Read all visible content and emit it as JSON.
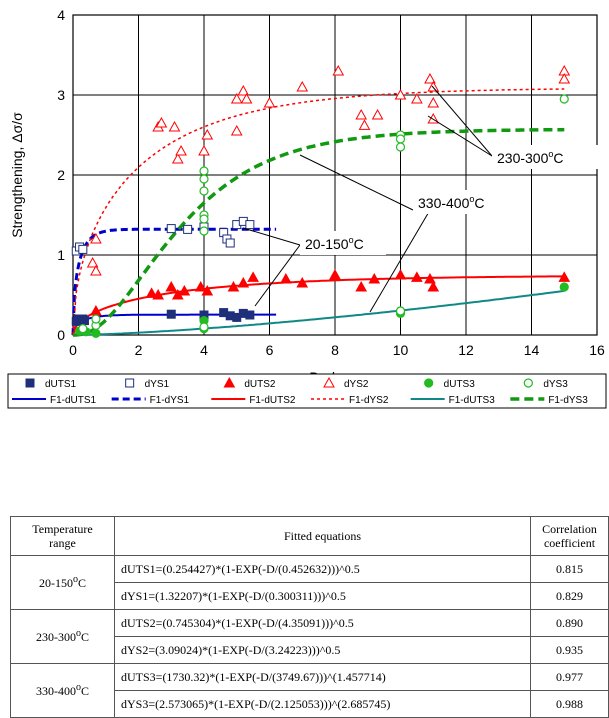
{
  "chart_data": {
    "type": "scatter",
    "xlabel": "D, dpa",
    "ylabel": "Strengthening,  Δσ/σ",
    "xlim": [
      0,
      16
    ],
    "ylim": [
      0,
      4
    ],
    "xticks": [
      "0",
      "2",
      "4",
      "6",
      "8",
      "10",
      "12",
      "14",
      "16"
    ],
    "yticks": [
      "0",
      "1",
      "2",
      "3",
      "4"
    ],
    "grid": true,
    "annotations": [
      {
        "text": "230-300",
        "sup": "o",
        "unit": "C",
        "points_to": [
          "dYS2",
          "dUTS2"
        ]
      },
      {
        "text": "330-400",
        "sup": "o",
        "unit": "C",
        "points_to": [
          "dYS3",
          "dUTS3"
        ]
      },
      {
        "text": "20-150",
        "sup": "o",
        "unit": "C",
        "points_to": [
          "dYS1",
          "dUTS1"
        ]
      }
    ],
    "series": [
      {
        "name": "dUTS1",
        "kind": "points",
        "marker": "square-filled",
        "color": "#1f2f7a",
        "points": [
          [
            0.1,
            0.17
          ],
          [
            0.15,
            0.2
          ],
          [
            0.2,
            0.19
          ],
          [
            0.3,
            0.2
          ],
          [
            0.35,
            0.18
          ],
          [
            3.0,
            0.26
          ],
          [
            4.0,
            0.25
          ],
          [
            4.6,
            0.28
          ],
          [
            4.8,
            0.24
          ],
          [
            5.0,
            0.22
          ],
          [
            5.2,
            0.27
          ],
          [
            5.4,
            0.25
          ]
        ]
      },
      {
        "name": "dYS1",
        "kind": "points",
        "marker": "square-open",
        "color": "#1f2f7a",
        "points": [
          [
            0.1,
            1.05
          ],
          [
            0.2,
            1.1
          ],
          [
            0.3,
            1.07
          ],
          [
            3.0,
            1.33
          ],
          [
            3.5,
            1.32
          ],
          [
            4.0,
            1.35
          ],
          [
            4.6,
            1.28
          ],
          [
            4.7,
            1.2
          ],
          [
            4.8,
            1.15
          ],
          [
            5.0,
            1.38
          ],
          [
            5.2,
            1.42
          ],
          [
            5.4,
            1.38
          ]
        ]
      },
      {
        "name": "dUTS2",
        "kind": "points",
        "marker": "triangle-filled",
        "color": "#ff0000",
        "points": [
          [
            0.7,
            0.3
          ],
          [
            2.4,
            0.52
          ],
          [
            2.6,
            0.5
          ],
          [
            3.0,
            0.6
          ],
          [
            3.2,
            0.5
          ],
          [
            3.4,
            0.55
          ],
          [
            3.9,
            0.6
          ],
          [
            4.1,
            0.55
          ],
          [
            4.9,
            0.6
          ],
          [
            5.2,
            0.65
          ],
          [
            5.5,
            0.72
          ],
          [
            6.5,
            0.7
          ],
          [
            7.0,
            0.65
          ],
          [
            8.0,
            0.75
          ],
          [
            8.8,
            0.6
          ],
          [
            9.2,
            0.7
          ],
          [
            10.0,
            0.75
          ],
          [
            10.5,
            0.72
          ],
          [
            10.9,
            0.7
          ],
          [
            11.0,
            0.6
          ],
          [
            15.0,
            0.72
          ]
        ]
      },
      {
        "name": "dYS2",
        "kind": "points",
        "marker": "triangle-open",
        "color": "#ff0000",
        "points": [
          [
            0.6,
            0.9
          ],
          [
            0.7,
            1.2
          ],
          [
            0.7,
            0.8
          ],
          [
            2.6,
            2.6
          ],
          [
            2.7,
            2.65
          ],
          [
            3.1,
            2.6
          ],
          [
            3.2,
            2.2
          ],
          [
            3.3,
            2.3
          ],
          [
            4.0,
            2.3
          ],
          [
            4.1,
            2.5
          ],
          [
            5.0,
            2.95
          ],
          [
            5.2,
            3.05
          ],
          [
            5.3,
            2.95
          ],
          [
            5.0,
            2.55
          ],
          [
            6.0,
            2.9
          ],
          [
            7.0,
            3.1
          ],
          [
            8.1,
            3.3
          ],
          [
            8.8,
            2.75
          ],
          [
            8.9,
            2.62
          ],
          [
            9.3,
            2.75
          ],
          [
            10.0,
            3.0
          ],
          [
            10.5,
            2.95
          ],
          [
            10.9,
            3.2
          ],
          [
            11.0,
            3.1
          ],
          [
            11.0,
            2.9
          ],
          [
            11.0,
            2.7
          ],
          [
            15.0,
            3.3
          ],
          [
            15.0,
            3.2
          ]
        ]
      },
      {
        "name": "dUTS3",
        "kind": "points",
        "marker": "circle-filled",
        "color": "#22bb22",
        "points": [
          [
            0.2,
            0.05
          ],
          [
            0.4,
            0.04
          ],
          [
            0.7,
            0.02
          ],
          [
            4.0,
            0.08
          ],
          [
            4.0,
            0.18
          ],
          [
            10.0,
            0.3
          ],
          [
            10.0,
            0.27
          ],
          [
            15.0,
            0.6
          ]
        ]
      },
      {
        "name": "dYS3",
        "kind": "points",
        "marker": "circle-open",
        "color": "#22bb22",
        "points": [
          [
            0.3,
            0.08
          ],
          [
            0.7,
            0.12
          ],
          [
            0.7,
            0.2
          ],
          [
            4.0,
            2.05
          ],
          [
            4.0,
            1.95
          ],
          [
            4.0,
            1.8
          ],
          [
            4.0,
            1.5
          ],
          [
            4.0,
            1.45
          ],
          [
            4.0,
            1.3
          ],
          [
            4.0,
            0.1
          ],
          [
            10.0,
            2.5
          ],
          [
            10.0,
            2.45
          ],
          [
            10.0,
            2.35
          ],
          [
            10.0,
            0.3
          ],
          [
            15.0,
            2.95
          ]
        ]
      },
      {
        "name": "F1-dUTS1",
        "kind": "fit",
        "style": "solid",
        "color": "#0000cc",
        "a": 0.254427,
        "tau": 0.452632,
        "n": 0.5,
        "xrange": [
          0,
          6.2
        ]
      },
      {
        "name": "F1-dYS1",
        "kind": "fit",
        "style": "dash",
        "color": "#0000cc",
        "a": 1.32207,
        "tau": 0.300311,
        "n": 0.5,
        "xrange": [
          0,
          6.2
        ]
      },
      {
        "name": "F1-dUTS2",
        "kind": "fit",
        "style": "solid",
        "color": "#ff0000",
        "a": 0.745304,
        "tau": 4.35091,
        "n": 0.5,
        "xrange": [
          0,
          15
        ]
      },
      {
        "name": "F1-dYS2",
        "kind": "fit",
        "style": "dot",
        "color": "#ff0000",
        "a": 3.09024,
        "tau": 3.24223,
        "n": 0.5,
        "xrange": [
          0,
          15
        ]
      },
      {
        "name": "F1-dUTS3",
        "kind": "fit",
        "style": "solid",
        "color": "#118888",
        "a": 1730.32,
        "tau": 3749.67,
        "n": 1.457714,
        "xrange": [
          0,
          15
        ]
      },
      {
        "name": "F1-dYS3",
        "kind": "fit",
        "style": "longdash",
        "color": "#119911",
        "a": 2.573065,
        "tau": 2.125053,
        "n": 2.685745,
        "xrange": [
          0,
          15
        ]
      }
    ]
  },
  "table": {
    "header_range_line1": "Temperature",
    "header_range_line2": "range",
    "header_equations": "Fitted equations",
    "header_corr_line1": "Correlation",
    "header_corr_line2": "coefficient",
    "rows": [
      {
        "range": "20-150",
        "range_sup": "o",
        "range_unit": "C",
        "eq1": "dUTS1=(0.254427)*(1-EXP(-D/(0.452632)))^0.5",
        "c1": "0.815",
        "eq2": "dYS1=(1.32207)*(1-EXP(-D/(0.300311)))^0.5",
        "c2": "0.829"
      },
      {
        "range": "230-300",
        "range_sup": "o",
        "range_unit": "C",
        "eq1": "dUTS2=(0.745304)*(1-EXP(-D/(4.35091)))^0.5",
        "c1": "0.890",
        "eq2": "dYS2=(3.09024)*(1-EXP(-D/(3.24223)))^0.5",
        "c2": "0.935"
      },
      {
        "range": "330-400",
        "range_sup": "o",
        "range_unit": "C",
        "eq1": "dUTS3=(1730.32)*(1-EXP(-D/(3749.67)))^(1.457714)",
        "c1": "0.977",
        "eq2": "dYS3=(2.573065)*(1-EXP(-D/(2.125053)))^(2.685745)",
        "c2": "0.988"
      }
    ]
  }
}
